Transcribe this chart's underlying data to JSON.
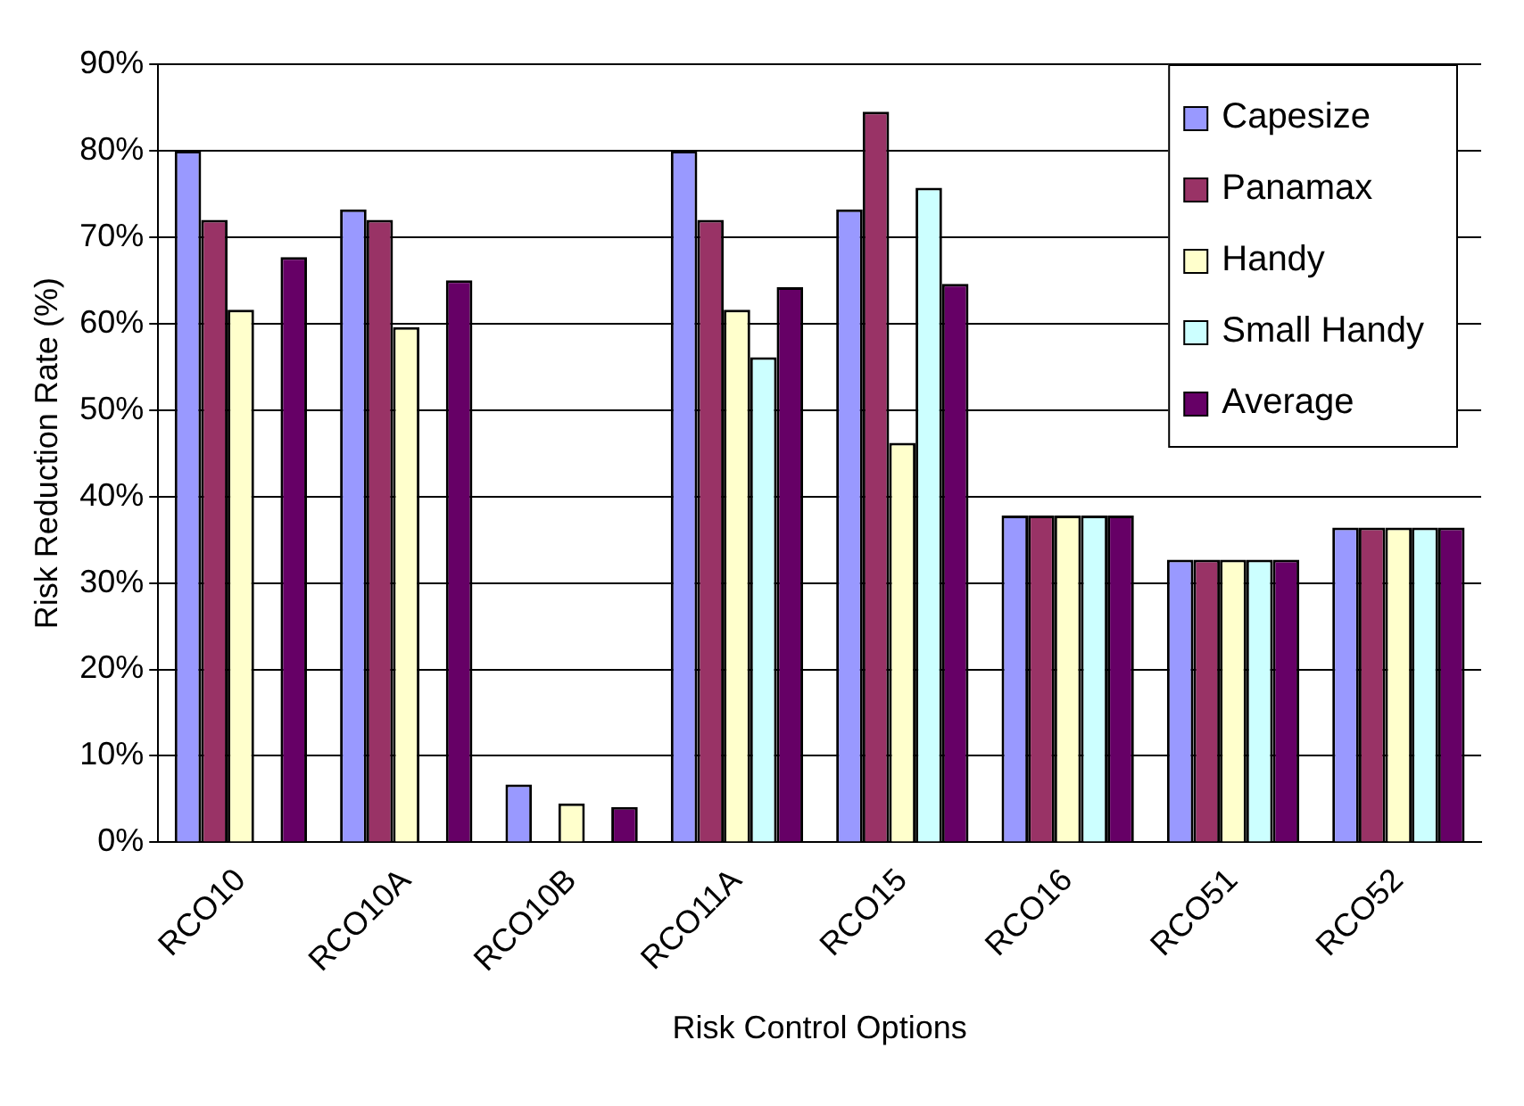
{
  "chart_data": {
    "type": "bar",
    "xlabel": "Risk Control Options",
    "ylabel": "Risk Reduction Rate (%)",
    "categories": [
      "RCO10",
      "RCO10A",
      "RCO10B",
      "RCO11A",
      "RCO15",
      "RCO16",
      "RCO51",
      "RCO52"
    ],
    "series": [
      {
        "name": "Capesize",
        "color": "#9999ff",
        "values": [
          80,
          73.2,
          6.7,
          80,
          73.2,
          37.8,
          32.7,
          36.4
        ]
      },
      {
        "name": "Panamax",
        "color": "#993366",
        "values": [
          72,
          72,
          null,
          72,
          84.5,
          37.8,
          32.7,
          36.4
        ]
      },
      {
        "name": "Handy",
        "color": "#ffffcc",
        "values": [
          61.6,
          59.6,
          4.5,
          61.6,
          46.2,
          37.8,
          32.7,
          36.4
        ]
      },
      {
        "name": "Small Handy",
        "color": "#ccffff",
        "values": [
          null,
          null,
          null,
          56.1,
          75.7,
          37.8,
          32.7,
          36.4
        ]
      },
      {
        "name": "Average",
        "color": "#660066",
        "values": [
          67.7,
          65,
          4.1,
          64.2,
          64.6,
          37.8,
          32.7,
          36.4
        ]
      }
    ],
    "ylim": [
      0,
      90
    ],
    "yticks": [
      {
        "value": 0,
        "label": "0%"
      },
      {
        "value": 10,
        "label": "10%"
      },
      {
        "value": 20,
        "label": "20%"
      },
      {
        "value": 30,
        "label": "30%"
      },
      {
        "value": 40,
        "label": "40%"
      },
      {
        "value": 50,
        "label": "50%"
      },
      {
        "value": 60,
        "label": "60%"
      },
      {
        "value": 70,
        "label": "70%"
      },
      {
        "value": 80,
        "label": "80%"
      },
      {
        "value": 90,
        "label": "90%"
      }
    ],
    "grid": "y",
    "legend": "top right"
  }
}
